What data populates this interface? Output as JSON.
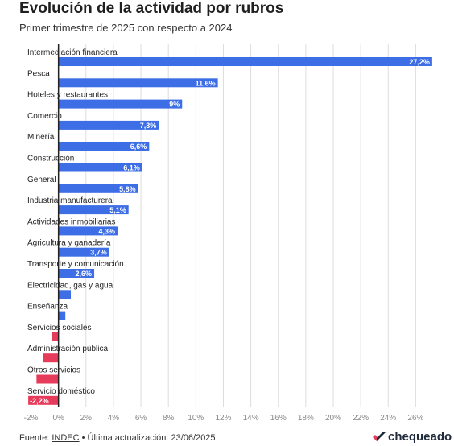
{
  "header": {
    "title": "Evolución de la actividad por rubros",
    "subtitle": "Primer trimestre de 2025 con respecto a 2024"
  },
  "footer": {
    "source_prefix": "Fuente: ",
    "source_link": "INDEC",
    "source_suffix": " • Última actualización: 23/06/2025",
    "logo_text": "chequeado"
  },
  "colors": {
    "positive": "#3d6ee6",
    "negative": "#e63b5a",
    "grid": "#dddddd",
    "axis": "#222222"
  },
  "chart_data": {
    "type": "bar",
    "orientation": "horizontal",
    "title": "Evolución de la actividad por rubros",
    "subtitle": "Primer trimestre de 2025 con respecto a 2024",
    "categories": [
      "Intermediación financiera",
      "Pesca",
      "Hoteles y restaurantes",
      "Comercio",
      "Minería",
      "Construcción",
      "General",
      "Industria manufacturera",
      "Actividades inmobiliarias",
      "Agricultura y ganadería",
      "Transporte y comunicación",
      "Electricidad, gas y agua",
      "Enseñanza",
      "Servicios sociales",
      "Administración pública",
      "Otros servicios",
      "Servicio doméstico"
    ],
    "values": [
      27.2,
      11.6,
      9,
      7.3,
      6.6,
      6.1,
      5.8,
      5.1,
      4.3,
      3.7,
      2.6,
      0.9,
      0.5,
      -0.5,
      -1.1,
      -1.6,
      -2.2
    ],
    "data_labels": [
      "27,2%",
      "11,6%",
      "9%",
      "7,3%",
      "6,6%",
      "6,1%",
      "5,8%",
      "5,1%",
      "4,3%",
      "3,7%",
      "2,6%",
      "",
      "",
      "",
      "",
      "",
      "-2,2%"
    ],
    "x_ticks": [
      -2,
      0,
      2,
      4,
      6,
      8,
      10,
      12,
      14,
      16,
      18,
      20,
      22,
      24,
      26
    ],
    "x_tick_labels": [
      "-2%",
      "0%",
      "2%",
      "4%",
      "6%",
      "8%",
      "10%",
      "12%",
      "14%",
      "16%",
      "18%",
      "20%",
      "22%",
      "24%",
      "26%"
    ],
    "xlim": [
      -2.5,
      27.5
    ],
    "grid": true,
    "xlabel": "",
    "ylabel": ""
  }
}
